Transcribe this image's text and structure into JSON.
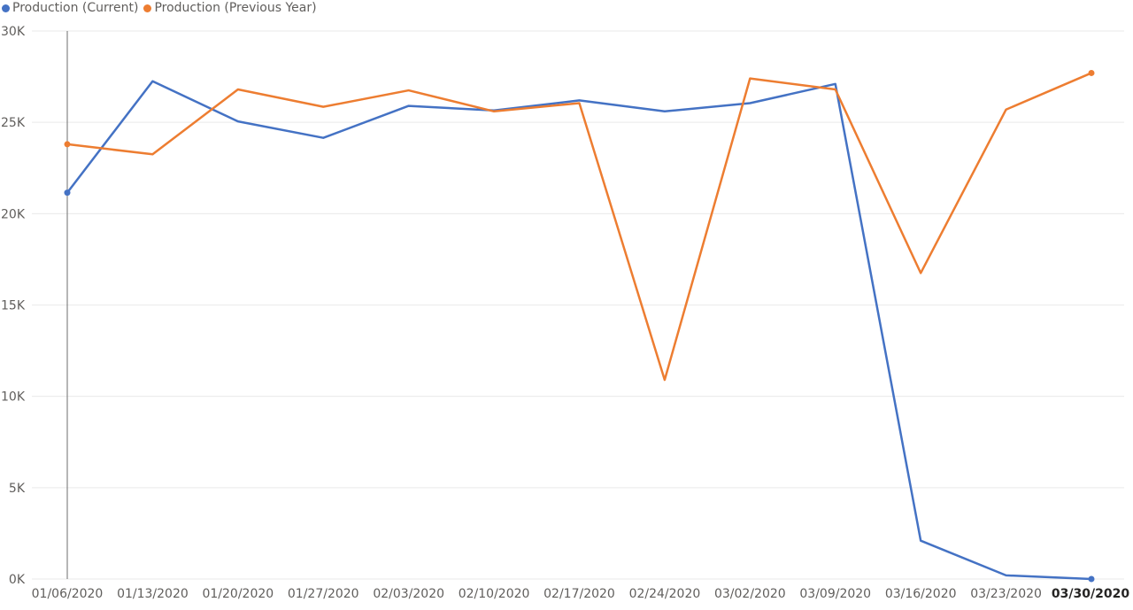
{
  "chart_data": {
    "type": "line",
    "categories": [
      "01/06/2020",
      "01/13/2020",
      "01/20/2020",
      "01/27/2020",
      "02/03/2020",
      "02/10/2020",
      "02/17/2020",
      "02/24/2020",
      "03/02/2020",
      "03/09/2020",
      "03/16/2020",
      "03/23/2020",
      "03/30/2020"
    ],
    "series": [
      {
        "name": "Production (Current)",
        "color": "#4472c4",
        "values": [
          21150,
          27250,
          25050,
          24150,
          25900,
          25650,
          26200,
          25600,
          26050,
          27100,
          2100,
          200,
          0
        ]
      },
      {
        "name": "Production (Previous Year)",
        "color": "#ed7d31",
        "values": [
          23800,
          23250,
          26800,
          25850,
          26750,
          25600,
          26050,
          10900,
          27400,
          26800,
          16750,
          25700,
          27700
        ]
      }
    ],
    "ylim": [
      0,
      30000
    ],
    "y_ticks": [
      0,
      5000,
      10000,
      15000,
      20000,
      25000,
      30000
    ],
    "y_tick_labels": [
      "0K",
      "5K",
      "10K",
      "15K",
      "20K",
      "25K",
      "30K"
    ],
    "grid": true,
    "legend_position": "top-left",
    "highlighted_category": "03/30/2020",
    "cursor_category": "01/06/2020"
  }
}
